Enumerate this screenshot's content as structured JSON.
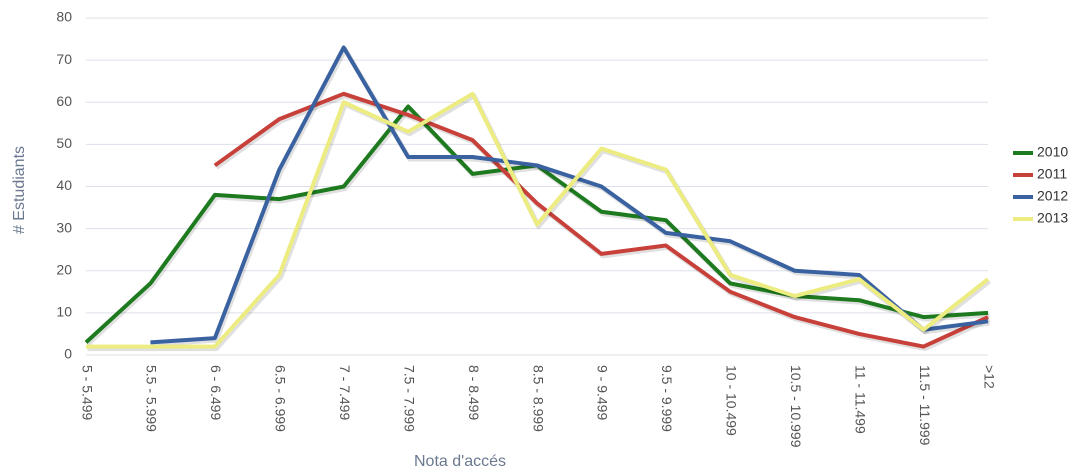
{
  "chart_data": {
    "type": "line",
    "x_label": "Nota d'accés",
    "y_label": "# Estudiants",
    "categories": [
      "5 - 5.499",
      "5.5 - 5.999",
      "6 - 6.499",
      "6.5 - 6.999",
      "7 - 7.499",
      "7.5 - 7.999",
      "8 - 8.499",
      "8.5 - 8.999",
      "9 - 9.499",
      "9.5 - 9.999",
      "10 - 10.499",
      "10.5 - 10.999",
      "11 - 11.499",
      "11.5 - 11.999",
      ">12"
    ],
    "series": [
      {
        "name": "2010",
        "color": "#1e7a1e",
        "values": [
          3,
          17,
          38,
          37,
          40,
          59,
          43,
          45,
          34,
          32,
          17,
          14,
          13,
          9,
          10
        ]
      },
      {
        "name": "2011",
        "color": "#c8403a",
        "values": [
          null,
          null,
          45,
          56,
          62,
          57,
          51,
          36,
          24,
          26,
          15,
          9,
          5,
          2,
          9
        ]
      },
      {
        "name": "2012",
        "color": "#3a62a0",
        "values": [
          null,
          3,
          4,
          44,
          73,
          47,
          47,
          45,
          40,
          29,
          27,
          20,
          19,
          6,
          8
        ]
      },
      {
        "name": "2013",
        "color": "#ecec80",
        "values": [
          2,
          2,
          2,
          19,
          60,
          53,
          62,
          31,
          49,
          44,
          19,
          14,
          18,
          6,
          18
        ]
      }
    ],
    "ylim": [
      0,
      80
    ],
    "yticks": [
      0,
      10,
      20,
      30,
      40,
      50,
      60,
      70,
      80
    ],
    "grid": true,
    "legend": "right"
  }
}
